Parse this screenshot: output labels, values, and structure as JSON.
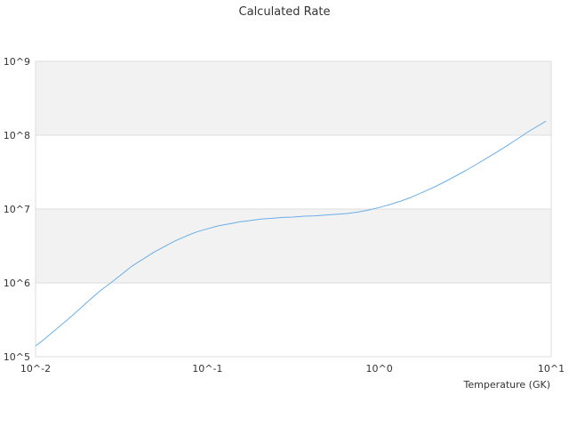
{
  "chart_data": {
    "type": "line",
    "title": "Calculated Rate",
    "xlabel": "Temperature (GK)",
    "ylabel": "",
    "x_scale": "log",
    "y_scale": "log",
    "xlim": [
      0.01,
      10
    ],
    "ylim": [
      100000,
      1000000000
    ],
    "x_ticks": [
      {
        "value": 0.01,
        "label": "10^-2"
      },
      {
        "value": 0.1,
        "label": "10^-1"
      },
      {
        "value": 1,
        "label": "10^0"
      },
      {
        "value": 10,
        "label": "10^1"
      }
    ],
    "y_ticks": [
      {
        "value": 100000,
        "label": "10^5"
      },
      {
        "value": 1000000,
        "label": "10^6"
      },
      {
        "value": 10000000,
        "label": "10^7"
      },
      {
        "value": 100000000,
        "label": "10^8"
      },
      {
        "value": 1000000000,
        "label": "10^9"
      }
    ],
    "grid": true,
    "band_fill": "#f2f2f2",
    "grid_color": "#dddddd",
    "series": [
      {
        "color": "#6aaee8",
        "x": [
          0.01,
          0.0115,
          0.0133,
          0.0154,
          0.0178,
          0.0205,
          0.0237,
          0.0274,
          0.0316,
          0.0365,
          0.0422,
          0.0487,
          0.0562,
          0.0649,
          0.075,
          0.0866,
          0.1,
          0.115,
          0.133,
          0.154,
          0.178,
          0.205,
          0.237,
          0.274,
          0.316,
          0.365,
          0.422,
          0.487,
          0.562,
          0.649,
          0.75,
          0.866,
          1.0,
          1.15,
          1.33,
          1.54,
          1.78,
          2.05,
          2.37,
          2.74,
          3.16,
          3.65,
          4.22,
          4.87,
          5.62,
          6.49,
          7.5,
          8.66,
          9.3
        ],
        "y": [
          140000,
          180000,
          240000,
          320000,
          430000,
          580000,
          780000,
          1000000,
          1300000,
          1700000,
          2100000,
          2600000,
          3100000,
          3700000,
          4300000,
          4900000,
          5400000,
          5900000,
          6300000,
          6700000,
          7000000,
          7300000,
          7500000,
          7700000,
          7800000,
          8000000,
          8100000,
          8300000,
          8500000,
          8700000,
          9100000,
          9700000,
          10500000,
          11500000,
          12800000,
          14500000,
          16800000,
          19500000,
          23000000,
          27500000,
          33000000,
          40000000,
          49000000,
          60000000,
          74000000,
          92000000,
          115000000,
          140000000,
          155000000
        ]
      }
    ]
  }
}
